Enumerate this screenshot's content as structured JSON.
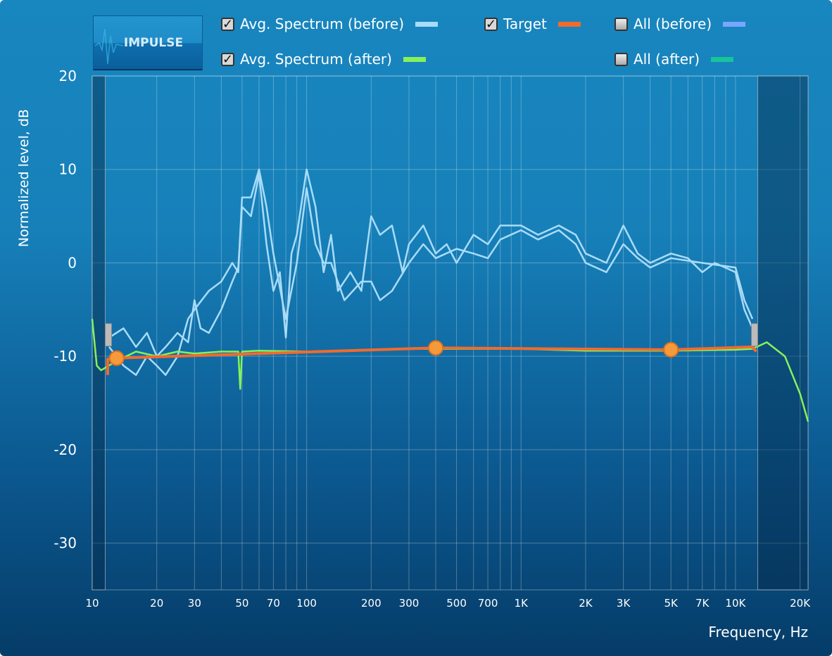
{
  "impulse_button": "IMPULSE",
  "legend": [
    {
      "label": "Avg. Spectrum (before)",
      "checked": true,
      "color": "#a8dcf8"
    },
    {
      "label": "Avg. Spectrum (after)",
      "checked": true,
      "color": "#86f25a"
    },
    {
      "label": "Target",
      "checked": true,
      "color": "#f26a2c"
    },
    {
      "label": "All (before)",
      "checked": false,
      "color": "#7aa6ff"
    },
    {
      "label": "All (after)",
      "checked": false,
      "color": "#17c49a"
    }
  ],
  "chart_data": {
    "type": "line",
    "xscale": "log",
    "xlabel": "Frequency, Hz",
    "ylabel": "Normalized level, dB",
    "xlim": [
      10,
      21800
    ],
    "ylim": [
      -35,
      20
    ],
    "grid": true,
    "xticks": [
      {
        "v": 10,
        "l": "10"
      },
      {
        "v": 20,
        "l": "20"
      },
      {
        "v": 30,
        "l": "30"
      },
      {
        "v": 50,
        "l": "50"
      },
      {
        "v": 70,
        "l": "70"
      },
      {
        "v": 100,
        "l": "100"
      },
      {
        "v": 200,
        "l": "200"
      },
      {
        "v": 300,
        "l": "300"
      },
      {
        "v": 500,
        "l": "500"
      },
      {
        "v": 700,
        "l": "700"
      },
      {
        "v": 1000,
        "l": "1K"
      },
      {
        "v": 2000,
        "l": "2K"
      },
      {
        "v": 3000,
        "l": "3K"
      },
      {
        "v": 5000,
        "l": "5K"
      },
      {
        "v": 7000,
        "l": "7K"
      },
      {
        "v": 10000,
        "l": "10K"
      },
      {
        "v": 20000,
        "l": "20K"
      }
    ],
    "yticks": [
      {
        "v": 20,
        "l": "20"
      },
      {
        "v": 10,
        "l": "10"
      },
      {
        "v": 0,
        "l": "0"
      },
      {
        "v": -10,
        "l": "-10"
      },
      {
        "v": -20,
        "l": "-20"
      },
      {
        "v": -30,
        "l": "-30"
      }
    ],
    "excluded_ranges": [
      [
        10,
        11.5
      ],
      [
        12700,
        21800
      ]
    ],
    "series": [
      {
        "name": "Avg. Spectrum (before) L",
        "color": "#a8dcf8",
        "points": [
          [
            12,
            -8
          ],
          [
            14,
            -7
          ],
          [
            16,
            -9
          ],
          [
            18,
            -7.5
          ],
          [
            20,
            -10
          ],
          [
            22,
            -9
          ],
          [
            25,
            -7.5
          ],
          [
            28,
            -8.5
          ],
          [
            30,
            -4
          ],
          [
            32,
            -7
          ],
          [
            35,
            -7.5
          ],
          [
            40,
            -5
          ],
          [
            45,
            -2
          ],
          [
            48,
            -0.5
          ],
          [
            50,
            6
          ],
          [
            55,
            5
          ],
          [
            60,
            9.5
          ],
          [
            65,
            2
          ],
          [
            70,
            -3
          ],
          [
            75,
            -1
          ],
          [
            80,
            -8
          ],
          [
            85,
            1
          ],
          [
            90,
            3
          ],
          [
            100,
            10
          ],
          [
            110,
            6
          ],
          [
            120,
            -1
          ],
          [
            130,
            3
          ],
          [
            140,
            -3
          ],
          [
            160,
            -1
          ],
          [
            180,
            -3
          ],
          [
            200,
            5
          ],
          [
            220,
            3
          ],
          [
            250,
            4
          ],
          [
            280,
            -1
          ],
          [
            300,
            2
          ],
          [
            350,
            4
          ],
          [
            400,
            1
          ],
          [
            450,
            2
          ],
          [
            500,
            0
          ],
          [
            600,
            3
          ],
          [
            700,
            2
          ],
          [
            800,
            4
          ],
          [
            1000,
            4
          ],
          [
            1200,
            3
          ],
          [
            1500,
            4
          ],
          [
            1800,
            3
          ],
          [
            2000,
            1
          ],
          [
            2500,
            0
          ],
          [
            3000,
            4
          ],
          [
            3500,
            1
          ],
          [
            4000,
            0
          ],
          [
            5000,
            1
          ],
          [
            6000,
            0.5
          ],
          [
            7000,
            -1
          ],
          [
            8000,
            0
          ],
          [
            10000,
            -1
          ],
          [
            11000,
            -5
          ],
          [
            12000,
            -7
          ]
        ]
      },
      {
        "name": "Avg. Spectrum (before) R",
        "color": "#a8dcf8",
        "points": [
          [
            12,
            -9
          ],
          [
            14,
            -11
          ],
          [
            16,
            -12
          ],
          [
            18,
            -10
          ],
          [
            20,
            -11
          ],
          [
            22,
            -12
          ],
          [
            25,
            -10
          ],
          [
            28,
            -6
          ],
          [
            30,
            -5
          ],
          [
            35,
            -3
          ],
          [
            40,
            -2
          ],
          [
            45,
            0
          ],
          [
            48,
            -1
          ],
          [
            50,
            7
          ],
          [
            55,
            7
          ],
          [
            60,
            10
          ],
          [
            65,
            6
          ],
          [
            70,
            1
          ],
          [
            80,
            -6
          ],
          [
            90,
            0
          ],
          [
            100,
            8
          ],
          [
            110,
            2
          ],
          [
            120,
            0
          ],
          [
            130,
            0
          ],
          [
            150,
            -4
          ],
          [
            180,
            -2
          ],
          [
            200,
            -2
          ],
          [
            220,
            -4
          ],
          [
            250,
            -3
          ],
          [
            300,
            0
          ],
          [
            350,
            2
          ],
          [
            400,
            0.5
          ],
          [
            500,
            1.5
          ],
          [
            600,
            1
          ],
          [
            700,
            0.5
          ],
          [
            800,
            2.5
          ],
          [
            1000,
            3.5
          ],
          [
            1200,
            2.5
          ],
          [
            1500,
            3.5
          ],
          [
            1800,
            2
          ],
          [
            2000,
            0
          ],
          [
            2500,
            -1
          ],
          [
            3000,
            2
          ],
          [
            3500,
            0.5
          ],
          [
            4000,
            -0.5
          ],
          [
            5000,
            0.5
          ],
          [
            7000,
            0
          ],
          [
            10000,
            -0.5
          ],
          [
            11000,
            -4
          ],
          [
            12000,
            -6
          ]
        ]
      },
      {
        "name": "Avg. Spectrum (after)",
        "color": "#86f25a",
        "points": [
          [
            10,
            -6
          ],
          [
            10.5,
            -11
          ],
          [
            11,
            -11.5
          ],
          [
            13,
            -10.5
          ],
          [
            16,
            -9.5
          ],
          [
            20,
            -10
          ],
          [
            25,
            -9.5
          ],
          [
            30,
            -9.7
          ],
          [
            40,
            -9.5
          ],
          [
            48,
            -9.5
          ],
          [
            49,
            -13.5
          ],
          [
            50,
            -9.5
          ],
          [
            60,
            -9.4
          ],
          [
            100,
            -9.5
          ],
          [
            200,
            -9.3
          ],
          [
            300,
            -9.2
          ],
          [
            500,
            -9.2
          ],
          [
            1000,
            -9.2
          ],
          [
            2000,
            -9.4
          ],
          [
            5000,
            -9.4
          ],
          [
            10000,
            -9.3
          ],
          [
            12000,
            -9.2
          ],
          [
            14000,
            -8.5
          ],
          [
            17000,
            -10
          ],
          [
            20000,
            -14
          ],
          [
            21800,
            -17
          ]
        ]
      },
      {
        "name": "Target",
        "color": "#f26a2c",
        "points": [
          [
            11.8,
            -12
          ],
          [
            11.8,
            -10.3
          ],
          [
            13,
            -10.2
          ],
          [
            400,
            -9.1
          ],
          [
            5000,
            -9.3
          ],
          [
            12000,
            -9
          ],
          [
            12500,
            -9.5
          ]
        ]
      }
    ],
    "target_handles": [
      [
        13,
        -10.2
      ],
      [
        400,
        -9.1
      ],
      [
        5000,
        -9.3
      ]
    ]
  }
}
